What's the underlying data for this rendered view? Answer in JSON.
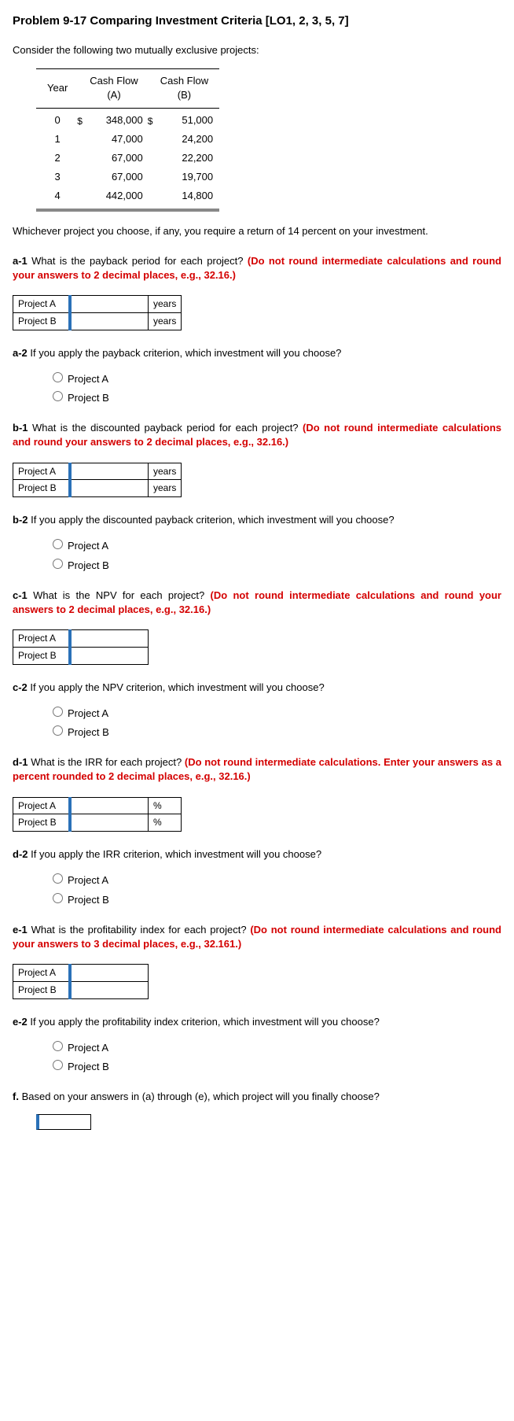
{
  "title": "Problem 9-17 Comparing Investment Criteria [LO1, 2, 3, 5, 7]",
  "intro": "Consider the following two mutually exclusive projects:",
  "cashflow": {
    "headers": {
      "year": "Year",
      "a": "Cash Flow\n(A)",
      "b": "Cash Flow\n(B)"
    },
    "rows": [
      {
        "year": "0",
        "a": "348,000",
        "b": "51,000",
        "dollar": true
      },
      {
        "year": "1",
        "a": "47,000",
        "b": "24,200"
      },
      {
        "year": "2",
        "a": "67,000",
        "b": "22,200"
      },
      {
        "year": "3",
        "a": "67,000",
        "b": "19,700"
      },
      {
        "year": "4",
        "a": "442,000",
        "b": "14,800"
      }
    ]
  },
  "requirement": "Whichever project you choose, if any, you require a return of 14 percent on your investment.",
  "questions": {
    "a1": {
      "label": "a-1",
      "text": "What is the payback period for each project? ",
      "red": "(Do not round intermediate calculations and round your answers to 2 decimal places, e.g., 32.16.)",
      "unit": "years"
    },
    "a2": {
      "label": "a-2",
      "text": "If you apply the payback criterion, which investment will you choose?"
    },
    "b1": {
      "label": "b-1",
      "text": "What is the discounted payback period for each project? ",
      "red": "(Do not round intermediate calculations and round your answers to 2 decimal places, e.g., 32.16.)",
      "unit": "years"
    },
    "b2": {
      "label": "b-2",
      "text": "If you apply the discounted payback criterion, which investment will you choose?"
    },
    "c1": {
      "label": "c-1",
      "text": "What is the NPV for each project? ",
      "red": "(Do not round intermediate calculations and round your answers to 2 decimal places, e.g., 32.16.)",
      "unit": ""
    },
    "c2": {
      "label": "c-2",
      "text": "If you apply the NPV criterion, which investment will you choose?"
    },
    "d1": {
      "label": "d-1",
      "text": "What is the IRR for each project? ",
      "red": "(Do not round intermediate calculations. Enter your answers as a percent rounded to 2 decimal places, e.g., 32.16.)",
      "unit": "%"
    },
    "d2": {
      "label": "d-2",
      "text": "If you apply the IRR criterion, which investment will you choose?"
    },
    "e1": {
      "label": "e-1",
      "text": "What is the profitability index for each project? ",
      "red": "(Do not round intermediate calculations and round your answers to 3 decimal places, e.g., 32.161.)",
      "unit": ""
    },
    "e2": {
      "label": "e-2",
      "text": "If you apply the profitability index criterion, which investment will you choose?"
    },
    "f": {
      "label": "f.",
      "text": "Based on your answers in (a) through (e), which project will you finally choose?"
    }
  },
  "projects": {
    "a": "Project A",
    "b": "Project B"
  },
  "dollar": "$"
}
